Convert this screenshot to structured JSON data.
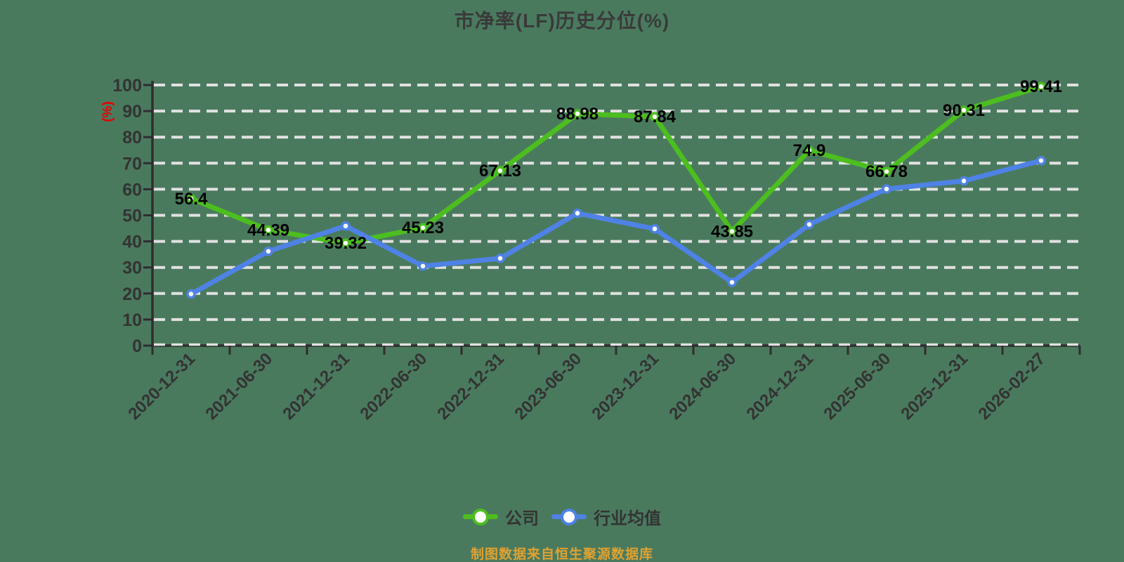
{
  "y_axis_unit": "(%)",
  "source_note": "制图数据来自恒生聚源数据库",
  "colors": {
    "background": "#4a7a5e",
    "title": "#3a3a3a",
    "axis": "#2e2e2e",
    "tick_label": "#333333",
    "gridline": "#e1e1e1",
    "data_label": "#000000",
    "y_unit_label": "#e60000",
    "source_note": "#dfa231"
  },
  "chart_data": {
    "type": "line",
    "title": "市净率(LF)历史分位(%)",
    "categories": [
      "2020-12-31",
      "2021-06-30",
      "2021-12-31",
      "2022-06-30",
      "2022-12-31",
      "2023-06-30",
      "2023-12-31",
      "2024-06-30",
      "2024-12-31",
      "2025-06-30",
      "2025-12-31",
      "2026-02-27"
    ],
    "series": [
      {
        "id": "company",
        "name": "公司",
        "color": "#4cbe1f",
        "show_labels": true,
        "values": [
          56.4,
          44.39,
          39.32,
          45.23,
          67.13,
          88.98,
          87.84,
          43.85,
          74.9,
          66.78,
          90.31,
          99.41
        ]
      },
      {
        "id": "industry-average",
        "name": "行业均值",
        "color": "#4f82e5",
        "show_labels": false,
        "values": [
          19.8,
          36.2,
          45.9,
          30.5,
          33.5,
          50.8,
          44.8,
          24.3,
          46.5,
          60.1,
          63.2,
          71
        ]
      }
    ],
    "ylim": [
      0,
      100
    ],
    "y_ticks": [
      0,
      10,
      20,
      30,
      40,
      50,
      60,
      70,
      80,
      90,
      100
    ],
    "xlabel": "",
    "ylabel": "(%)",
    "grid": "horizontal dashed",
    "legend_position": "bottom"
  }
}
